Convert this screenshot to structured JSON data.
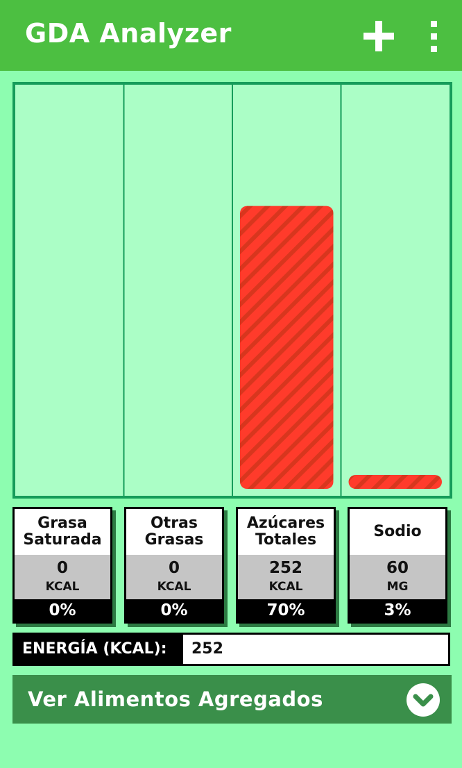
{
  "app": {
    "title": "GDA Analyzer"
  },
  "toolbar": {
    "add_icon": "plus-icon",
    "more_icon": "more-vert-icon"
  },
  "colors": {
    "appbar": "#4cbf41",
    "background": "#8dfdb0",
    "chart_background": "#abfec6",
    "chart_border": "#169c5a",
    "bar_fill": "#ff3b2b",
    "bar_stripe": "#d8361e",
    "expander": "#3a8f4a"
  },
  "chart_data": {
    "type": "bar",
    "categories": [
      "Grasa Saturada",
      "Otras Grasas",
      "Azúcares Totales",
      "Sodio"
    ],
    "values": [
      0,
      0,
      70,
      3
    ],
    "ylim": [
      0,
      100
    ],
    "title": "",
    "xlabel": "",
    "ylabel": "",
    "grid": false
  },
  "nutrients": [
    {
      "title_line1": "Grasa",
      "title_line2": "Saturada",
      "value": "0",
      "unit": "KCAL",
      "percent": "0%"
    },
    {
      "title_line1": "Otras",
      "title_line2": "Grasas",
      "value": "0",
      "unit": "KCAL",
      "percent": "0%"
    },
    {
      "title_line1": "Azúcares",
      "title_line2": "Totales",
      "value": "252",
      "unit": "KCAL",
      "percent": "70%"
    },
    {
      "title_line1": "Sodio",
      "title_line2": "",
      "value": "60",
      "unit": "MG",
      "percent": "3%"
    }
  ],
  "energy": {
    "label": "ENERGÍA (KCAL):",
    "value": "252"
  },
  "expander": {
    "label": "Ver Alimentos Agregados",
    "icon": "chevron-down-circle-icon"
  }
}
